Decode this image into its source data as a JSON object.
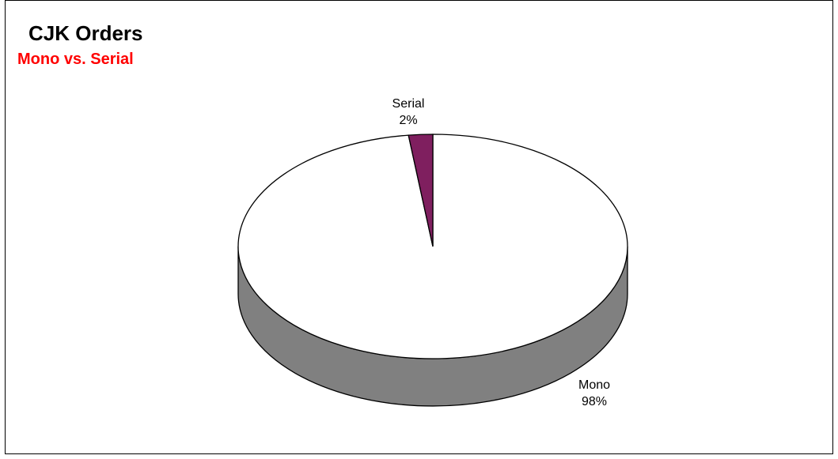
{
  "title": "CJK Orders",
  "subtitle": "Mono vs. Serial",
  "colors": {
    "subtitle": "#ff0000",
    "mono_top": "#ffffff",
    "mono_side": "#808080",
    "serial_top": "#7f1f5f",
    "outline": "#000000"
  },
  "chart_data": {
    "type": "pie",
    "style": "3d",
    "title": "CJK Orders",
    "subtitle": "Mono vs. Serial",
    "slices": [
      {
        "label": "Mono",
        "percent_label": "98%",
        "value": 98,
        "color": "#ffffff"
      },
      {
        "label": "Serial",
        "percent_label": "2%",
        "value": 2,
        "color": "#7f1f5f"
      }
    ],
    "legend": "none"
  }
}
